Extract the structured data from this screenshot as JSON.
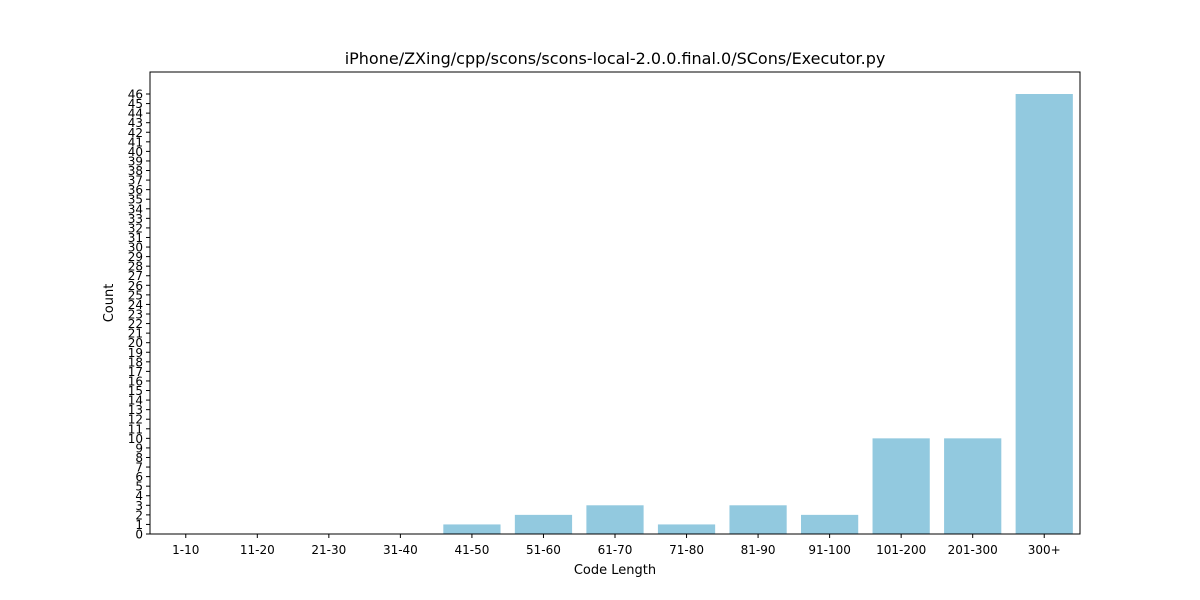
{
  "chart_data": {
    "type": "bar",
    "title": "iPhone/ZXing/cpp/scons/scons-local-2.0.0.final.0/SCons/Executor.py",
    "xlabel": "Code Length",
    "ylabel": "Count",
    "categories": [
      "1-10",
      "11-20",
      "21-30",
      "31-40",
      "41-50",
      "51-60",
      "61-70",
      "71-80",
      "81-90",
      "91-100",
      "101-200",
      "201-300",
      "300+"
    ],
    "values": [
      0,
      0,
      0,
      0,
      1,
      2,
      3,
      1,
      3,
      2,
      10,
      10,
      46
    ],
    "ylim": [
      0,
      48.3
    ],
    "yticks": [
      0,
      1,
      2,
      3,
      4,
      5,
      6,
      7,
      8,
      9,
      10,
      11,
      12,
      13,
      14,
      15,
      16,
      17,
      18,
      19,
      20,
      21,
      22,
      23,
      24,
      25,
      26,
      27,
      28,
      29,
      30,
      31,
      32,
      33,
      34,
      35,
      36,
      37,
      38,
      39,
      40,
      41,
      42,
      43,
      44,
      45,
      46
    ],
    "bar_color": "#92c9df",
    "grid": false,
    "legend": "none"
  }
}
